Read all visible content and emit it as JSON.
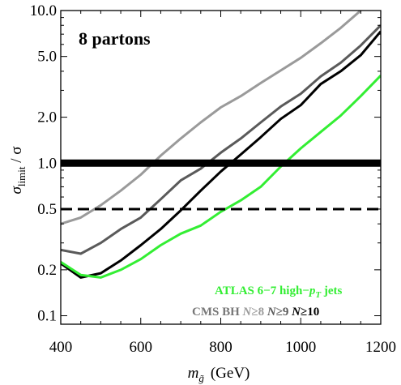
{
  "chart_data": {
    "type": "line",
    "annotation": "8 partons",
    "xlabel": {
      "base": "m",
      "sub": "g̃",
      "unit": "(GeV)"
    },
    "ylabel": {
      "base": "σ",
      "sub": "limit",
      "rest": " / σ"
    },
    "xlim": [
      400,
      1200
    ],
    "ylim": [
      0.088,
      10.0
    ],
    "yscale": "log",
    "x_ticks": [
      400,
      600,
      800,
      1000,
      1200
    ],
    "x_tick_labels": [
      "400",
      "600",
      "800",
      "1000",
      "1200"
    ],
    "y_ticks": [
      0.1,
      0.2,
      0.5,
      1.0,
      2.0,
      5.0,
      10.0
    ],
    "y_tick_labels": [
      "0.1",
      "0.2",
      "0.5",
      "1.0",
      "2.0",
      "5.0",
      "10.0"
    ],
    "grid": false,
    "reference_lines": [
      {
        "y": 1.0,
        "style": "solid",
        "color": "#000000"
      },
      {
        "y": 0.5,
        "style": "dashed",
        "color": "#000000"
      }
    ],
    "series": [
      {
        "name": "CMS BH N≥8",
        "color": "#9a9a9a",
        "x": [
          400,
          450,
          500,
          550,
          600,
          650,
          700,
          750,
          800,
          850,
          900,
          950,
          1000,
          1050,
          1100,
          1150
        ],
        "values": [
          0.4,
          0.44,
          0.53,
          0.66,
          0.84,
          1.12,
          1.45,
          1.85,
          2.32,
          2.75,
          3.35,
          4.05,
          4.9,
          6.1,
          7.7,
          10.0
        ]
      },
      {
        "name": "N≥9",
        "color": "#5a5a5a",
        "x": [
          400,
          450,
          500,
          550,
          600,
          650,
          700,
          750,
          800,
          850,
          900,
          950,
          1000,
          1050,
          1100,
          1150,
          1200
        ],
        "values": [
          0.27,
          0.255,
          0.3,
          0.37,
          0.44,
          0.58,
          0.77,
          0.92,
          1.17,
          1.45,
          1.85,
          2.35,
          2.85,
          3.7,
          4.55,
          5.9,
          8.0
        ]
      },
      {
        "name": "N≥10",
        "color": "#000000",
        "x": [
          400,
          450,
          500,
          550,
          600,
          650,
          700,
          750,
          800,
          850,
          900,
          950,
          1000,
          1050,
          1100,
          1150,
          1200
        ],
        "values": [
          0.22,
          0.178,
          0.19,
          0.23,
          0.29,
          0.37,
          0.49,
          0.66,
          0.88,
          1.14,
          1.48,
          1.95,
          2.4,
          3.3,
          4.0,
          5.1,
          7.3
        ]
      },
      {
        "name": "ATLAS 6−7 high−pT jets",
        "color": "#33ee33",
        "x": [
          400,
          450,
          500,
          550,
          600,
          650,
          700,
          750,
          800,
          850,
          900,
          950,
          1000,
          1050,
          1100,
          1150,
          1200
        ],
        "values": [
          0.225,
          0.185,
          0.178,
          0.2,
          0.235,
          0.29,
          0.345,
          0.39,
          0.48,
          0.57,
          0.7,
          0.95,
          1.25,
          1.6,
          2.05,
          2.75,
          3.75
        ]
      }
    ],
    "legend": {
      "line1": {
        "text": "ATLAS 6−7 high−",
        "sym": "p",
        "sub": "T",
        "tail": " jets",
        "color": "#33ee33"
      },
      "line2": [
        {
          "text": "CMS BH ",
          "color": "#777777",
          "italic": false
        },
        {
          "text": "N",
          "color": "#9a9a9a",
          "italic": true
        },
        {
          "text": "≥8 ",
          "color": "#9a9a9a",
          "italic": false
        },
        {
          "text": "N",
          "color": "#5a5a5a",
          "italic": true
        },
        {
          "text": "≥9 ",
          "color": "#5a5a5a",
          "italic": false
        },
        {
          "text": "N",
          "color": "#000000",
          "italic": true
        },
        {
          "text": "≥10",
          "color": "#000000",
          "italic": false
        }
      ]
    }
  }
}
